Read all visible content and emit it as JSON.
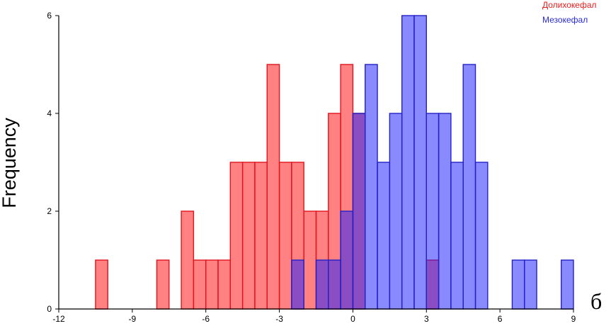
{
  "chart_data": {
    "type": "bar",
    "title": "",
    "xlabel": "",
    "ylabel": "Frequency",
    "corner_label": "б",
    "xlim": [
      -12,
      9
    ],
    "ylim": [
      0,
      6
    ],
    "bin_width": 0.5,
    "x_ticks": [
      -12,
      -9,
      -6,
      -3,
      0,
      3,
      6,
      9
    ],
    "y_ticks": [
      0,
      2,
      4,
      6
    ],
    "legend_position": "top-right",
    "grid": false,
    "series": [
      {
        "name": "Долихокефал",
        "color": "#ff5555",
        "bins": [
          {
            "x0": -10.5,
            "x1": -10.0,
            "count": 1
          },
          {
            "x0": -8.0,
            "x1": -7.5,
            "count": 1
          },
          {
            "x0": -7.0,
            "x1": -6.5,
            "count": 2
          },
          {
            "x0": -6.5,
            "x1": -6.0,
            "count": 1
          },
          {
            "x0": -6.0,
            "x1": -5.5,
            "count": 1
          },
          {
            "x0": -5.5,
            "x1": -5.0,
            "count": 1
          },
          {
            "x0": -5.0,
            "x1": -4.5,
            "count": 3
          },
          {
            "x0": -4.5,
            "x1": -4.0,
            "count": 3
          },
          {
            "x0": -4.0,
            "x1": -3.5,
            "count": 3
          },
          {
            "x0": -3.5,
            "x1": -3.0,
            "count": 5
          },
          {
            "x0": -3.0,
            "x1": -2.5,
            "count": 3
          },
          {
            "x0": -2.5,
            "x1": -2.0,
            "count": 3
          },
          {
            "x0": -2.0,
            "x1": -1.5,
            "count": 2
          },
          {
            "x0": -1.5,
            "x1": -1.0,
            "count": 2
          },
          {
            "x0": -1.0,
            "x1": -0.5,
            "count": 4
          },
          {
            "x0": -0.5,
            "x1": 0.0,
            "count": 5
          },
          {
            "x0": 0.0,
            "x1": 0.5,
            "count": 4
          },
          {
            "x0": 3.0,
            "x1": 3.5,
            "count": 1
          }
        ]
      },
      {
        "name": "Мезокефал",
        "color": "#4444ff",
        "bins": [
          {
            "x0": -2.5,
            "x1": -2.0,
            "count": 1
          },
          {
            "x0": -1.5,
            "x1": -1.0,
            "count": 1
          },
          {
            "x0": -1.0,
            "x1": -0.5,
            "count": 1
          },
          {
            "x0": -0.5,
            "x1": 0.0,
            "count": 2
          },
          {
            "x0": 0.0,
            "x1": 0.5,
            "count": 4
          },
          {
            "x0": 0.5,
            "x1": 1.0,
            "count": 5
          },
          {
            "x0": 1.0,
            "x1": 1.5,
            "count": 3
          },
          {
            "x0": 1.5,
            "x1": 2.0,
            "count": 4
          },
          {
            "x0": 2.0,
            "x1": 2.5,
            "count": 6
          },
          {
            "x0": 2.5,
            "x1": 3.0,
            "count": 6
          },
          {
            "x0": 3.0,
            "x1": 3.5,
            "count": 4
          },
          {
            "x0": 3.5,
            "x1": 4.0,
            "count": 4
          },
          {
            "x0": 4.0,
            "x1": 4.5,
            "count": 3
          },
          {
            "x0": 4.5,
            "x1": 5.0,
            "count": 5
          },
          {
            "x0": 5.0,
            "x1": 5.5,
            "count": 3
          },
          {
            "x0": 6.5,
            "x1": 7.0,
            "count": 1
          },
          {
            "x0": 7.0,
            "x1": 7.5,
            "count": 1
          },
          {
            "x0": 8.5,
            "x1": 9.0,
            "count": 1
          }
        ]
      }
    ]
  }
}
